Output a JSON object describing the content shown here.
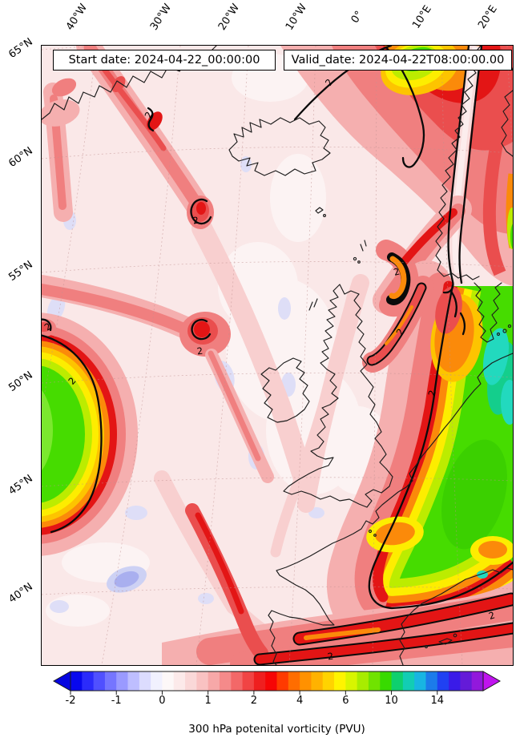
{
  "figure": {
    "start_date_label": "Start date: 2024-04-22_00:00:00",
    "valid_date_label": "Valid_date: 2024-04-22T08:00:00.00",
    "caption": "300 hPa potenital vorticity (PVU)"
  },
  "axes": {
    "top_labels": [
      "40°W",
      "30°W",
      "20°W",
      "10°W",
      "0°",
      "10°E",
      "20°E"
    ],
    "left_labels": [
      "65°N",
      "60°N",
      "55°N",
      "50°N",
      "45°N",
      "40°N"
    ]
  },
  "map": {
    "contour_label": "2",
    "contour_label_value": 2
  },
  "colorbar": {
    "tick_labels": [
      "-2",
      "-1",
      "0",
      "1",
      "2",
      "4",
      "6",
      "10",
      "14"
    ],
    "left_arrow_color": "#0505E0",
    "right_arrow_color": "#C013EF",
    "outline_color": "#1a1a1a",
    "segment_colors": [
      "#0808EE",
      "#2B2BFB",
      "#5050FF",
      "#7575FF",
      "#9A9AFF",
      "#BEBEFF",
      "#DCDCFE",
      "#F1F1FE",
      "#FDF8F8",
      "#FCEAEA",
      "#FAD8D8",
      "#F9C2C2",
      "#F7A8A8",
      "#F58A8A",
      "#F36868",
      "#F14444",
      "#EF1F1F",
      "#F60505",
      "#FF3A00",
      "#FF6D00",
      "#FF9100",
      "#FFB200",
      "#FFD300",
      "#FFF400",
      "#D8F500",
      "#A8EC00",
      "#70E300",
      "#38DA00",
      "#0ED06E",
      "#12CDB4",
      "#18B5E2",
      "#1C7BEA",
      "#2041F2",
      "#3A1BE8",
      "#641BD8",
      "#9218DC"
    ]
  },
  "chart_data": {
    "type": "heatmap",
    "title": "300 hPa potenital vorticity (PVU)",
    "variable": "potential vorticity",
    "level_hPa": 300,
    "units": "PVU",
    "start_date": "2024-04-22_00:00:00",
    "valid_date": "2024-04-22T08:00:00.00",
    "x_axis": {
      "label": "longitude",
      "ticks": [
        "40°W",
        "30°W",
        "20°W",
        "10°W",
        "0°",
        "10°E",
        "20°E"
      ]
    },
    "y_axis": {
      "label": "latitude",
      "ticks": [
        "65°N",
        "60°N",
        "55°N",
        "50°N",
        "45°N",
        "40°N"
      ]
    },
    "colorbar_ticks": [
      -2,
      -1,
      0,
      1,
      2,
      4,
      6,
      10,
      14
    ],
    "highlighted_contour_pvu": 2,
    "legend_position": "bottom horizontal colorbar with out-of-range arrows",
    "grid": "dashed graticule on",
    "background_pvu_range": [
      0,
      1
    ],
    "features": [
      {
        "name": "stratospheric intrusion over Scandinavia / Norwegian Sea",
        "approx_location": "0°E–15°E, 58–66°N",
        "peak_pvu": 8
      },
      {
        "name": "low-PV tongue along Norwegian coast between 2-PVU contours",
        "approx_location": "5°E, 58–65°N",
        "pvu": 1
      },
      {
        "name": "cut-off high-PV vortex at west edge",
        "approx_location": "40°W, 45–50°N",
        "peak_pvu": 7
      },
      {
        "name": "large high-PV region over France / Central Europe and Mediterranean",
        "approx_location": "0°–20°E, 37–52°N",
        "peak_pvu": 12
      },
      {
        "name": "PV filament SE of Greenland ending in small 2-PVU vortex near Iceland",
        "approx_location": "38°W–27°W, 56–65°N",
        "peak_pvu": 3
      },
      {
        "name": "PV filament with cyclonic swirl",
        "approx_location": "30°W, 51–53°N",
        "peak_pvu": 3
      },
      {
        "name": "crescent-shaped 2-PVU vortex NE of Scotland",
        "approx_location": "2°W, 58°N",
        "peak_pvu": 4
      },
      {
        "name": "elongated 2-PVU filament over the North Sea",
        "approx_location": "2°E, 54–57°N",
        "peak_pvu": 4
      },
      {
        "name": "zonal 2-PVU bands near 38–40°N across Iberia / Mediterranean",
        "peak_pvu": 5
      },
      {
        "name": "negative-PV pocket SW of Ireland",
        "approx_location": "25°W, 42°N",
        "min_pvu": -1
      }
    ]
  }
}
